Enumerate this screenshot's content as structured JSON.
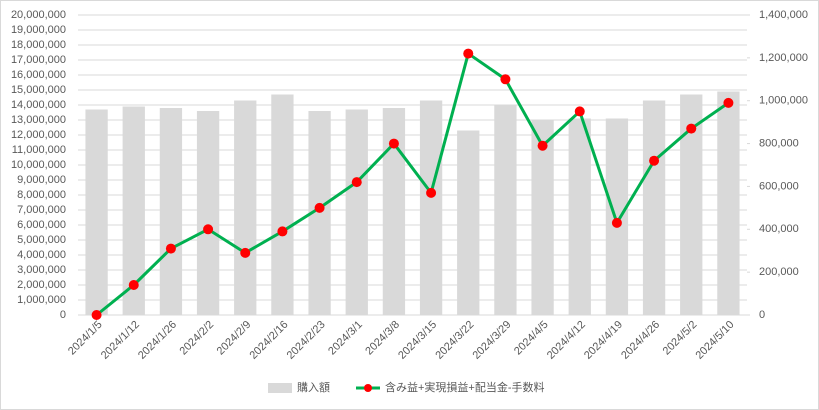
{
  "chart_data": {
    "type": "bar",
    "categories": [
      "2024/1/5",
      "2024/1/12",
      "2024/1/26",
      "2024/2/2",
      "2024/2/9",
      "2024/2/16",
      "2024/2/23",
      "2024/3/1",
      "2024/3/8",
      "2024/3/15",
      "2024/3/22",
      "2024/3/29",
      "2024/4/5",
      "2024/4/12",
      "2024/4/19",
      "2024/4/26",
      "2024/5/2",
      "2024/5/10"
    ],
    "series": [
      {
        "name": "購入額",
        "type": "bar",
        "color": "#d9d9d9",
        "values": [
          13700000,
          13900000,
          13800000,
          13600000,
          14300000,
          14700000,
          13600000,
          13700000,
          13800000,
          14300000,
          12300000,
          14000000,
          13000000,
          13100000,
          13100000,
          14300000,
          14700000,
          14900000
        ]
      },
      {
        "name": "含み益+実現損益+配当金-手数料",
        "type": "line",
        "axis": "y2",
        "color": "#00b050",
        "marker_color": "#ff0000",
        "values": [
          0,
          140000,
          310000,
          400000,
          290000,
          390000,
          500000,
          620000,
          800000,
          570000,
          1220000,
          1100000,
          790000,
          950000,
          430000,
          720000,
          870000,
          990000
        ]
      }
    ],
    "ylim": [
      0,
      20000000
    ],
    "yticks": [
      {
        "value": 0,
        "label": "0"
      },
      {
        "value": 1000000,
        "label": "1,000,000"
      },
      {
        "value": 2000000,
        "label": "2,000,000"
      },
      {
        "value": 3000000,
        "label": "3,000,000"
      },
      {
        "value": 4000000,
        "label": "4,000,000"
      },
      {
        "value": 5000000,
        "label": "5,000,000"
      },
      {
        "value": 6000000,
        "label": "6,000,000"
      },
      {
        "value": 7000000,
        "label": "7,000,000"
      },
      {
        "value": 8000000,
        "label": "8,000,000"
      },
      {
        "value": 9000000,
        "label": "9,000,000"
      },
      {
        "value": 10000000,
        "label": "10,000,000"
      },
      {
        "value": 11000000,
        "label": "11,000,000"
      },
      {
        "value": 12000000,
        "label": "12,000,000"
      },
      {
        "value": 13000000,
        "label": "13,000,000"
      },
      {
        "value": 14000000,
        "label": "14,000,000"
      },
      {
        "value": 15000000,
        "label": "15,000,000"
      },
      {
        "value": 16000000,
        "label": "16,000,000"
      },
      {
        "value": 17000000,
        "label": "17,000,000"
      },
      {
        "value": 18000000,
        "label": "18,000,000"
      },
      {
        "value": 19000000,
        "label": "19,000,000"
      },
      {
        "value": 20000000,
        "label": "20,000,000"
      }
    ],
    "y2lim": [
      0,
      1400000
    ],
    "y2ticks": [
      {
        "value": 0,
        "label": "0"
      },
      {
        "value": 200000,
        "label": "200,000"
      },
      {
        "value": 400000,
        "label": "400,000"
      },
      {
        "value": 600000,
        "label": "600,000"
      },
      {
        "value": 800000,
        "label": "800,000"
      },
      {
        "value": 1000000,
        "label": "1,000,000"
      },
      {
        "value": 1200000,
        "label": "1,200,000"
      },
      {
        "value": 1400000,
        "label": "1,400,000"
      }
    ],
    "grid": true,
    "legend": "bottom"
  }
}
